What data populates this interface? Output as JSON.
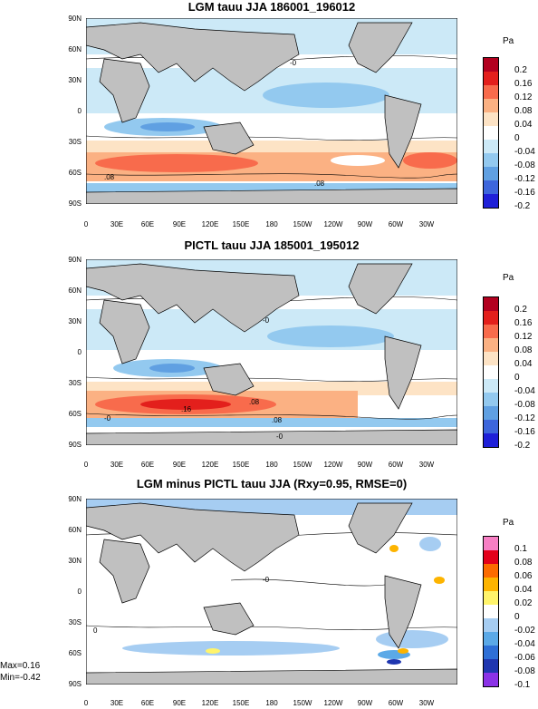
{
  "lat_labels": [
    "90N",
    "60N",
    "30N",
    "0",
    "30S",
    "60S",
    "90S"
  ],
  "lon_labels": [
    "0",
    "30E",
    "60E",
    "90E",
    "120E",
    "150E",
    "180",
    "150W",
    "120W",
    "90W",
    "60W",
    "30W"
  ],
  "panels": [
    {
      "title": "LGM tauu JJA 186001_196012",
      "units": "Pa",
      "levels": [
        "0.2",
        "0.16",
        "0.12",
        "0.08",
        "0.04",
        "0",
        "-0.04",
        "-0.08",
        "-0.12",
        "-0.16",
        "-0.2"
      ],
      "colors": [
        "#b2001f",
        "#e31f1c",
        "#f86b4c",
        "#fbb183",
        "#fde3c5",
        "#ffffff",
        "#cce9f7",
        "#93c9ef",
        "#60a0e2",
        "#3d66dc",
        "#1f20d8"
      ],
      "contour_labels": [
        ".08",
        "-0",
        ".08"
      ]
    },
    {
      "title": "PICTL tauu JJA 185001_195012",
      "units": "Pa",
      "levels": [
        "0.2",
        "0.16",
        "0.12",
        "0.08",
        "0.04",
        "0",
        "-0.04",
        "-0.08",
        "-0.12",
        "-0.16",
        "-0.2"
      ],
      "colors": [
        "#b2001f",
        "#e31f1c",
        "#f86b4c",
        "#fbb183",
        "#fde3c5",
        "#ffffff",
        "#cce9f7",
        "#93c9ef",
        "#60a0e2",
        "#3d66dc",
        "#1f20d8"
      ],
      "contour_labels": [
        "-0",
        "-0",
        ".16",
        ".08",
        ".08",
        "-0"
      ]
    },
    {
      "title": "LGM minus PICTL tauu JJA (Rxy=0.95, RMSE=0)",
      "units": "Pa",
      "levels": [
        "0.1",
        "0.08",
        "0.06",
        "0.04",
        "0.02",
        "0",
        "-0.02",
        "-0.04",
        "-0.06",
        "-0.08",
        "-0.1"
      ],
      "colors": [
        "#f77fc4",
        "#e3001a",
        "#fc6b00",
        "#fdb400",
        "#fff46b",
        "#ffffff",
        "#a6cdf2",
        "#5ba9e7",
        "#2e6fd6",
        "#1f36b0",
        "#8b32e6"
      ],
      "contour_labels": [
        "-0",
        "0"
      ],
      "stats": {
        "max": "Max=0.16",
        "min": "Min=-0.42"
      }
    }
  ]
}
